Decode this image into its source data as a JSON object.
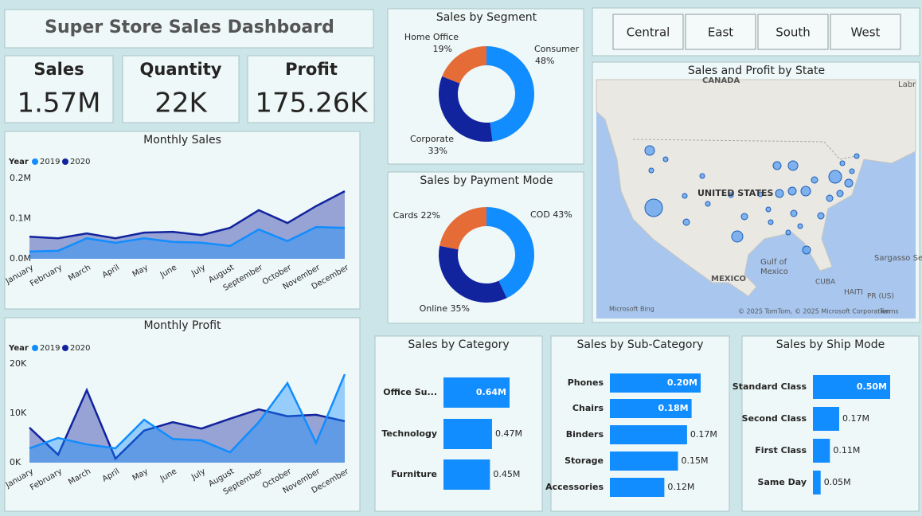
{
  "header": {
    "title": "Super Store Sales Dashboard"
  },
  "kpis": [
    {
      "label": "Sales",
      "value": "1.57M"
    },
    {
      "label": "Quantity",
      "value": "22K"
    },
    {
      "label": "Profit",
      "value": "175.26K"
    }
  ],
  "slicers": [
    "Central",
    "East",
    "South",
    "West"
  ],
  "map": {
    "title": "Sales and Profit by State",
    "labels": [
      "CANADA",
      "UNITED STATES",
      "MEXICO",
      "Gulf of",
      "Mexico",
      "CUBA",
      "HAITI",
      "PR (US)",
      "Sargasso Sea",
      "Labr",
      "Microsoft Bing",
      "© 2025 TomTom, © 2025 Microsoft Corporation",
      "Terms"
    ]
  },
  "chart_data": [
    {
      "type": "line",
      "title": "Monthly Sales",
      "legend_title": "Year",
      "grid": false,
      "categories": [
        "January",
        "February",
        "March",
        "April",
        "May",
        "June",
        "July",
        "August",
        "September",
        "October",
        "November",
        "December"
      ],
      "series": [
        {
          "name": "2019",
          "color": "#118dff",
          "values": [
            18000,
            20000,
            51000,
            40000,
            51000,
            42000,
            40000,
            32000,
            73000,
            44000,
            79000,
            77000
          ]
        },
        {
          "name": "2020",
          "color": "#12239e",
          "values": [
            55000,
            51000,
            63000,
            51000,
            65000,
            67000,
            59000,
            77000,
            121000,
            89000,
            131000,
            168000
          ]
        }
      ],
      "ylim": [
        0,
        200000
      ],
      "yticks": [
        {
          "value": 0,
          "label": "0.0M"
        },
        {
          "value": 100000,
          "label": "0.1M"
        },
        {
          "value": 200000,
          "label": "0.2M"
        }
      ]
    },
    {
      "type": "line",
      "title": "Monthly Profit",
      "legend_title": "Year",
      "grid": false,
      "categories": [
        "January",
        "February",
        "March",
        "April",
        "May",
        "June",
        "July",
        "August",
        "September",
        "October",
        "November",
        "December"
      ],
      "series": [
        {
          "name": "2019",
          "color": "#118dff",
          "values": [
            2900,
            5000,
            3700,
            2900,
            8700,
            4800,
            4500,
            2100,
            8200,
            16100,
            4000,
            17900
          ]
        },
        {
          "name": "2020",
          "color": "#12239e",
          "values": [
            7100,
            1600,
            14700,
            800,
            6500,
            8200,
            6900,
            8900,
            10800,
            9400,
            9700,
            8400
          ]
        }
      ],
      "ylim": [
        0,
        20000
      ],
      "yticks": [
        {
          "value": 0,
          "label": "0K"
        },
        {
          "value": 10000,
          "label": "10K"
        },
        {
          "value": 20000,
          "label": "20K"
        }
      ]
    },
    {
      "type": "pie",
      "title": "Sales by Segment",
      "categories": [
        "Consumer",
        "Corporate",
        "Home Office"
      ],
      "values": [
        48,
        33,
        19
      ],
      "value_labels": [
        "48%",
        "33%",
        "19%"
      ],
      "colors": [
        "#118dff",
        "#12239e",
        "#e66c37"
      ]
    },
    {
      "type": "pie",
      "title": "Sales by Payment Mode",
      "categories": [
        "COD",
        "Online",
        "Cards"
      ],
      "values": [
        43,
        35,
        22
      ],
      "value_labels": [
        "43%",
        "35%",
        "22%"
      ],
      "colors": [
        "#118dff",
        "#12239e",
        "#e66c37"
      ]
    },
    {
      "type": "barh",
      "title": "Sales by Category",
      "categories": [
        "Office Su...",
        "Technology",
        "Furniture"
      ],
      "values": [
        640000,
        470000,
        450000
      ],
      "value_labels": [
        "0.64M",
        "0.47M",
        "0.45M"
      ],
      "color": "#118dff"
    },
    {
      "type": "barh",
      "title": "Sales by Sub-Category",
      "categories": [
        "Phones",
        "Chairs",
        "Binders",
        "Storage",
        "Accessories"
      ],
      "values": [
        200000,
        180000,
        170000,
        150000,
        120000
      ],
      "value_labels": [
        "0.20M",
        "0.18M",
        "0.17M",
        "0.15M",
        "0.12M"
      ],
      "color": "#118dff"
    },
    {
      "type": "barh",
      "title": "Sales by Ship Mode",
      "categories": [
        "Standard Class",
        "Second Class",
        "First Class",
        "Same Day"
      ],
      "values": [
        500000,
        170000,
        110000,
        50000
      ],
      "value_labels": [
        "0.50M",
        "0.17M",
        "0.11M",
        "0.05M"
      ],
      "color": "#118dff"
    }
  ]
}
